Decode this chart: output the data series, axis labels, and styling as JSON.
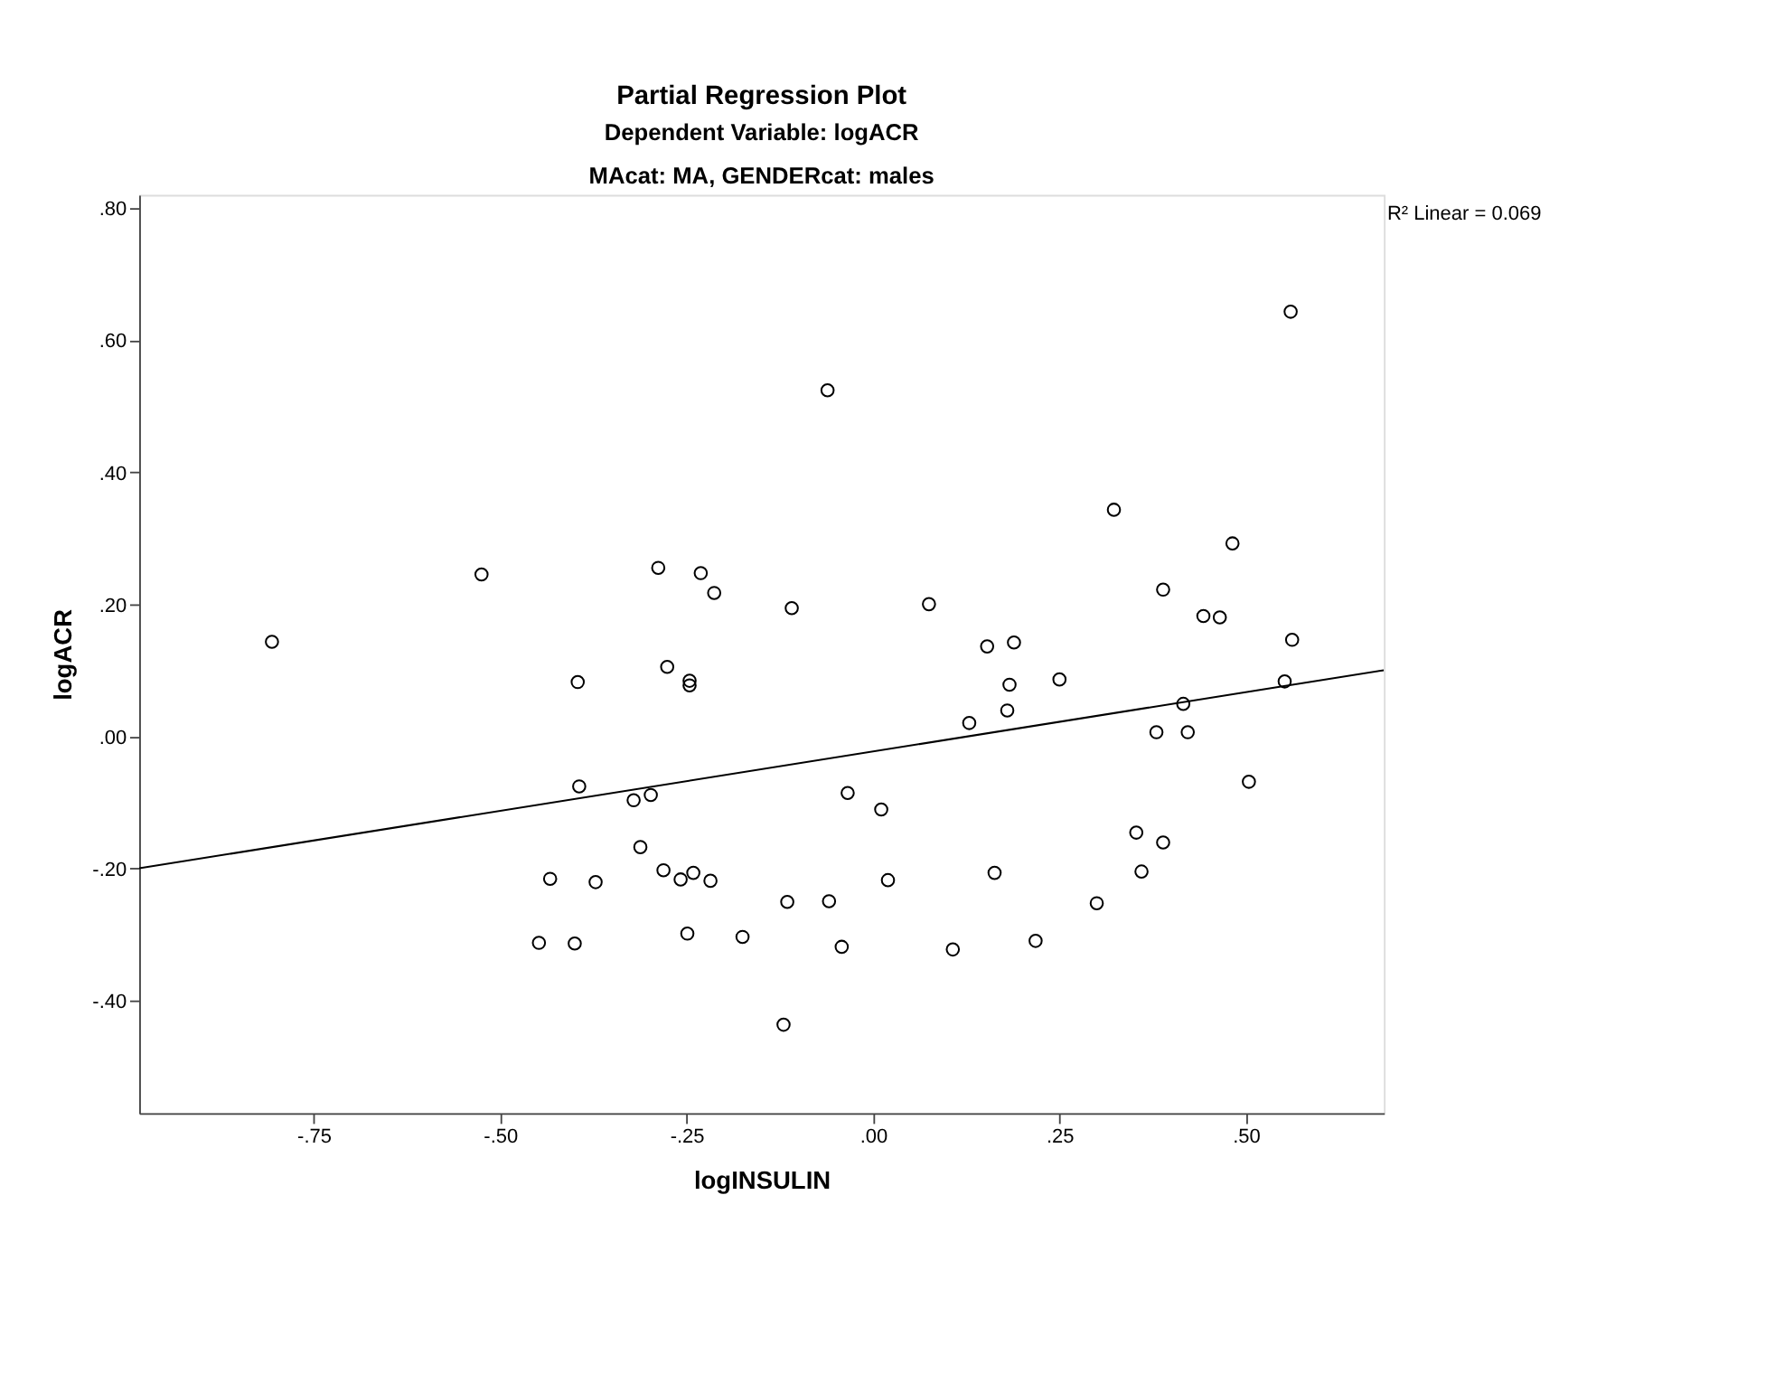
{
  "chart_data": {
    "type": "scatter",
    "title": "Partial Regression Plot",
    "subtitle": "Dependent Variable: logACR",
    "annotations": [
      "MAcat: MA, GENDERcat: males",
      "R² Linear = 0.069"
    ],
    "xlabel": "logINSULIN",
    "ylabel": "logACR",
    "xlim": [
      -0.984,
      0.685
    ],
    "ylim": [
      -0.571,
      0.82
    ],
    "xticks": [
      {
        "value": -0.75,
        "label": "-.75"
      },
      {
        "value": -0.5,
        "label": "-.50"
      },
      {
        "value": -0.25,
        "label": "-.25"
      },
      {
        "value": 0,
        "label": ".00"
      },
      {
        "value": 0.25,
        "label": ".25"
      },
      {
        "value": 0.5,
        "label": ".50"
      }
    ],
    "yticks": [
      {
        "value": -0.4,
        "label": "-.40"
      },
      {
        "value": -0.2,
        "label": "-.20"
      },
      {
        "value": 0,
        "label": ".00"
      },
      {
        "value": 0.2,
        "label": ".20"
      },
      {
        "value": 0.4,
        "label": ".40"
      },
      {
        "value": 0.6,
        "label": ".60"
      },
      {
        "value": 0.8,
        "label": ".80"
      }
    ],
    "grid": false,
    "series": [
      {
        "marker": "circle",
        "color": "#000000",
        "x": [
          -0.806,
          -0.525,
          -0.288,
          -0.231,
          -0.213,
          -0.109,
          -0.061,
          -0.396,
          -0.276,
          -0.246,
          -0.246,
          0.56,
          0.323,
          0.482,
          0.389,
          0.443,
          0.465,
          0.562,
          0.075,
          0.153,
          0.189,
          0.183,
          0.25,
          0.552,
          0.18,
          0.129,
          0.416,
          0.38,
          0.422,
          0.504,
          -0.034,
          0.011,
          0.353,
          0.389,
          0.36,
          0.163,
          0.02,
          -0.059,
          0.3,
          0.218,
          0.107,
          -0.042,
          -0.394,
          -0.321,
          -0.298,
          -0.312,
          -0.281,
          -0.258,
          -0.241,
          -0.218,
          -0.433,
          -0.372,
          -0.448,
          -0.4,
          -0.249,
          -0.175,
          -0.115,
          -0.12
        ],
        "values": [
          0.143,
          0.245,
          0.255,
          0.247,
          0.217,
          0.194,
          0.524,
          0.082,
          0.105,
          0.084,
          0.077,
          0.643,
          0.343,
          0.292,
          0.222,
          0.182,
          0.18,
          0.146,
          0.2,
          0.136,
          0.142,
          0.078,
          0.086,
          0.083,
          0.039,
          0.02,
          0.049,
          0.006,
          0.006,
          -0.069,
          -0.086,
          -0.111,
          -0.146,
          -0.161,
          -0.205,
          -0.207,
          -0.218,
          -0.25,
          -0.253,
          -0.31,
          -0.323,
          -0.319,
          -0.076,
          -0.097,
          -0.089,
          -0.168,
          -0.203,
          -0.217,
          -0.207,
          -0.219,
          -0.216,
          -0.221,
          -0.313,
          -0.314,
          -0.299,
          -0.304,
          -0.251,
          -0.437
        ]
      },
      {
        "type": "line",
        "line_style": "solid",
        "marker": "none",
        "color": "#000000",
        "x": [
          -0.984,
          0.685
        ],
        "values": [
          -0.2,
          0.1
        ]
      }
    ]
  }
}
